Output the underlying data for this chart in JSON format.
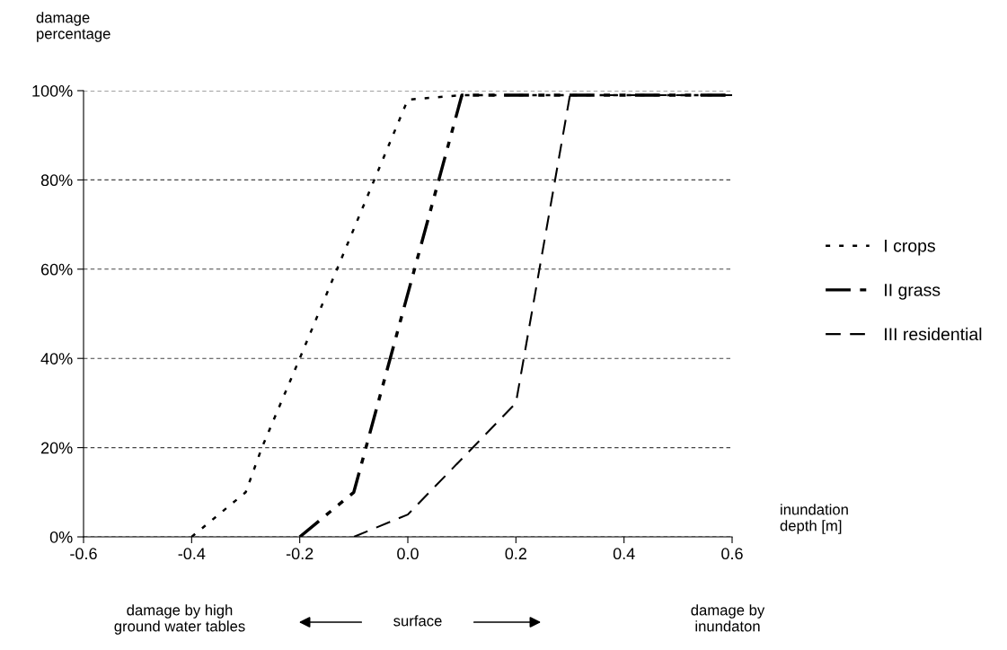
{
  "chart_data": {
    "type": "line",
    "ylabel": "damage\npercentage",
    "xlabel": "inundation\ndepth [m]",
    "series": [
      {
        "name": "I crops",
        "color": "#000000",
        "line_style": "dotted",
        "x": [
          -0.4,
          -0.3,
          -0.27,
          -0.2,
          0.0,
          0.1,
          0.6
        ],
        "values": [
          0,
          10,
          20,
          40,
          98,
          99,
          99
        ]
      },
      {
        "name": "II grass",
        "color": "#000000",
        "line_style": "dashdot",
        "x": [
          -0.2,
          -0.1,
          0.1,
          0.6
        ],
        "values": [
          0,
          10,
          99,
          99
        ]
      },
      {
        "name": "III residential",
        "color": "#000000",
        "line_style": "dashed",
        "x": [
          -0.1,
          0.0,
          0.2,
          0.3,
          0.6
        ],
        "values": [
          0,
          5,
          30,
          99,
          99
        ]
      }
    ],
    "xlim": [
      -0.6,
      0.6
    ],
    "xticks": [
      -0.6,
      -0.4,
      -0.2,
      {
        "value": 0,
        "label": "0.0"
      },
      0.2,
      0.4,
      0.6
    ],
    "ylim": [
      0,
      100
    ],
    "yticks": [
      {
        "value": 0,
        "label": "0%"
      },
      {
        "value": 20,
        "label": "20%"
      },
      {
        "value": 40,
        "label": "40%"
      },
      {
        "value": 60,
        "label": "60%"
      },
      {
        "value": 80,
        "label": "80%"
      },
      {
        "value": 100,
        "label": "100%"
      }
    ],
    "grid": "y",
    "legend": "right",
    "marker": "none",
    "annotations": [
      "damage by high\nground water tables",
      "surface",
      "damage by\ninundaton"
    ]
  }
}
